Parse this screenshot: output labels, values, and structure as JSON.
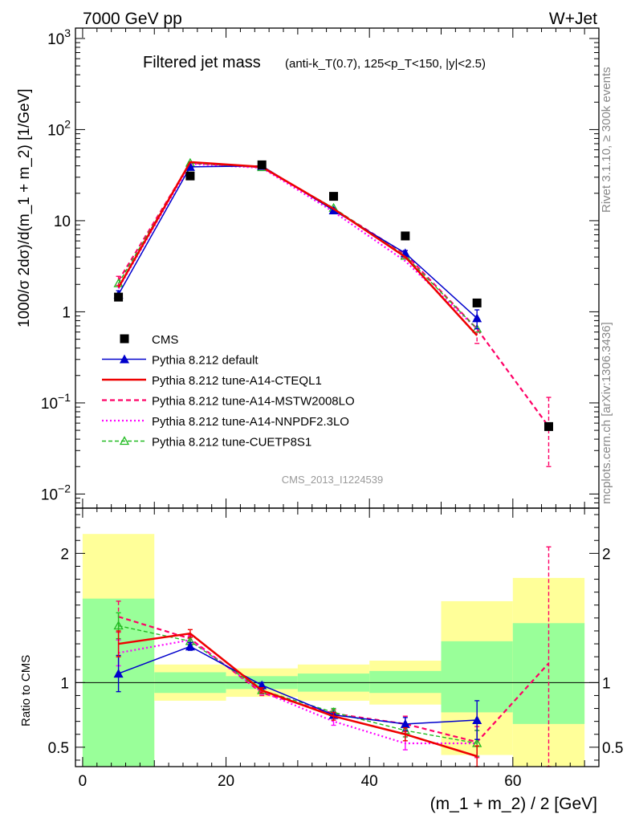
{
  "header": {
    "energy_label": "7000 GeV pp",
    "process_label": "W+Jet",
    "title_main": "Filtered jet mass",
    "title_detail": "(anti-k_T(0.7), 125<p_T<150, |y|<2.5)",
    "analysis_id": "CMS_2013_I1224539"
  },
  "side_labels": {
    "rivet": "Rivet 3.1.10, ≥ 300k events",
    "mcplots": "mcplots.cern.ch [arXiv:1306.3436]"
  },
  "colors": {
    "cms": "#000000",
    "default": "#0000cc",
    "cteql1": "#ee0000",
    "mstw": "#ff0066",
    "nnpdf": "#ff00ff",
    "cuetp8s1": "#22bb22",
    "band_inner": "#99ff99",
    "band_outer": "#ffff99"
  },
  "chart_data": [
    {
      "type": "line",
      "panel": "main",
      "ylabel": "1000/σ 2dσ)/d(m_1 + m_2) [1/GeV]",
      "yscale": "log",
      "ylim": [
        0.007,
        1300
      ],
      "xlim": [
        -1,
        72
      ],
      "y_tick_labels": [
        "10^-2",
        "10^-1",
        "1",
        "10",
        "10^2",
        "10^3"
      ],
      "legend": [
        "CMS",
        "Pythia 8.212 default",
        "Pythia 8.212 tune-A14-CTEQL1",
        "Pythia 8.212 tune-A14-MSTW2008LO",
        "Pythia 8.212 tune-A14-NNPDF2.3LO",
        "Pythia 8.212 tune-CUETP8S1"
      ],
      "x": [
        5,
        15,
        25,
        35,
        45,
        55,
        65
      ],
      "series": [
        {
          "name": "CMS",
          "key": "cms",
          "values": [
            1.45,
            31,
            41,
            18.5,
            6.8,
            1.25,
            0.055
          ]
        },
        {
          "name": "Pythia 8.212 default",
          "key": "default",
          "values": [
            1.55,
            39,
            40,
            13,
            4.4,
            0.85,
            null
          ],
          "err_up": [
            0.15,
            1,
            1,
            0.4,
            0.3,
            0.2,
            null
          ],
          "err_dn": [
            0.15,
            1,
            1,
            0.4,
            0.3,
            0.2,
            null
          ]
        },
        {
          "name": "Pythia 8.212 tune-A14-CTEQL1",
          "key": "cteql1",
          "values": [
            1.85,
            44,
            39,
            13.5,
            4.0,
            0.55,
            null
          ]
        },
        {
          "name": "Pythia 8.212 tune-A14-MSTW2008LO",
          "key": "mstw",
          "values": [
            2.2,
            43,
            38.5,
            13.5,
            4.3,
            0.65,
            0.055
          ],
          "err_up": [
            0.25,
            1,
            1,
            0.4,
            0.4,
            0.2,
            0.06
          ],
          "err_dn": [
            0.25,
            1,
            1,
            0.4,
            0.4,
            0.2,
            0.035
          ]
        },
        {
          "name": "Pythia 8.212 tune-A14-NNPDF2.3LO",
          "key": "nnpdf",
          "values": [
            1.8,
            42,
            38,
            12.5,
            3.6,
            0.65,
            null
          ]
        },
        {
          "name": "Pythia 8.212 tune-CUETP8S1",
          "key": "cuetp8s1",
          "values": [
            2.05,
            43,
            38.5,
            13.8,
            4.1,
            0.65,
            null
          ]
        }
      ]
    },
    {
      "type": "line",
      "panel": "ratio",
      "ylabel": "Ratio to CMS",
      "xlabel": "(m_1 + m_2) / 2 [GeV]",
      "ylim": [
        0.35,
        2.35
      ],
      "xlim": [
        -1,
        72
      ],
      "x_tick_labels": [
        "0",
        "20",
        "40",
        "60"
      ],
      "y_tick_labels": [
        "0.5",
        "1",
        "2"
      ],
      "bands": [
        {
          "xlo": 0,
          "xhi": 10,
          "inner": [
            0.35,
            1.65
          ],
          "outer": [
            0.35,
            2.15
          ]
        },
        {
          "xlo": 10,
          "xhi": 20,
          "inner": [
            0.92,
            1.08
          ],
          "outer": [
            0.86,
            1.14
          ]
        },
        {
          "xlo": 20,
          "xhi": 30,
          "inner": [
            0.95,
            1.05
          ],
          "outer": [
            0.89,
            1.11
          ]
        },
        {
          "xlo": 30,
          "xhi": 40,
          "inner": [
            0.93,
            1.07
          ],
          "outer": [
            0.86,
            1.14
          ]
        },
        {
          "xlo": 40,
          "xhi": 50,
          "inner": [
            0.92,
            1.09
          ],
          "outer": [
            0.83,
            1.17
          ]
        },
        {
          "xlo": 50,
          "xhi": 60,
          "inner": [
            0.77,
            1.32
          ],
          "outer": [
            0.44,
            1.63
          ]
        },
        {
          "xlo": 60,
          "xhi": 70,
          "inner": [
            0.68,
            1.46
          ],
          "outer": [
            0.35,
            1.81
          ]
        }
      ],
      "x": [
        5,
        15,
        25,
        35,
        45,
        55,
        65
      ],
      "series": [
        {
          "name": "Pythia 8.212 default",
          "key": "default",
          "values": [
            1.07,
            1.28,
            0.98,
            0.75,
            0.68,
            0.71,
            null
          ],
          "err_up": [
            0.14,
            0.03,
            0.02,
            0.02,
            0.05,
            0.15,
            null
          ],
          "err_dn": [
            0.14,
            0.03,
            0.02,
            0.02,
            0.05,
            0.15,
            null
          ]
        },
        {
          "name": "Pythia 8.212 tune-A14-CTEQL1",
          "key": "cteql1",
          "values": [
            1.3,
            1.38,
            0.94,
            0.74,
            0.6,
            0.43,
            null
          ],
          "err_up": [
            0.1,
            0.03,
            0.02,
            0.03,
            0.05,
            0.08,
            null
          ],
          "err_dn": [
            0.1,
            0.03,
            0.02,
            0.03,
            0.05,
            0.08,
            null
          ]
        },
        {
          "name": "Pythia 8.212 tune-A14-MSTW2008LO",
          "key": "mstw",
          "values": [
            1.51,
            1.34,
            0.92,
            0.76,
            0.68,
            0.54,
            1.15
          ],
          "err_up": [
            0.12,
            0.03,
            0.02,
            0.03,
            0.06,
            0.12,
            0.9
          ],
          "err_dn": [
            0.12,
            0.03,
            0.02,
            0.03,
            0.06,
            0.12,
            0.8
          ]
        },
        {
          "name": "Pythia 8.212 tune-A14-NNPDF2.3LO",
          "key": "nnpdf",
          "values": [
            1.23,
            1.33,
            0.93,
            0.7,
            0.53,
            0.53,
            null
          ],
          "err_up": [
            0.1,
            0.03,
            0.02,
            0.03,
            0.05,
            0.1,
            null
          ],
          "err_dn": [
            0.1,
            0.03,
            0.02,
            0.03,
            0.05,
            0.1,
            null
          ]
        },
        {
          "name": "Pythia 8.212 tune-CUETP8S1",
          "key": "cuetp8s1",
          "values": [
            1.44,
            1.32,
            0.94,
            0.77,
            0.63,
            0.53,
            null
          ],
          "err_up": [
            0.1,
            0.03,
            0.02,
            0.03,
            0.05,
            0.1,
            null
          ],
          "err_dn": [
            0.1,
            0.03,
            0.02,
            0.03,
            0.05,
            0.1,
            null
          ]
        }
      ]
    }
  ]
}
